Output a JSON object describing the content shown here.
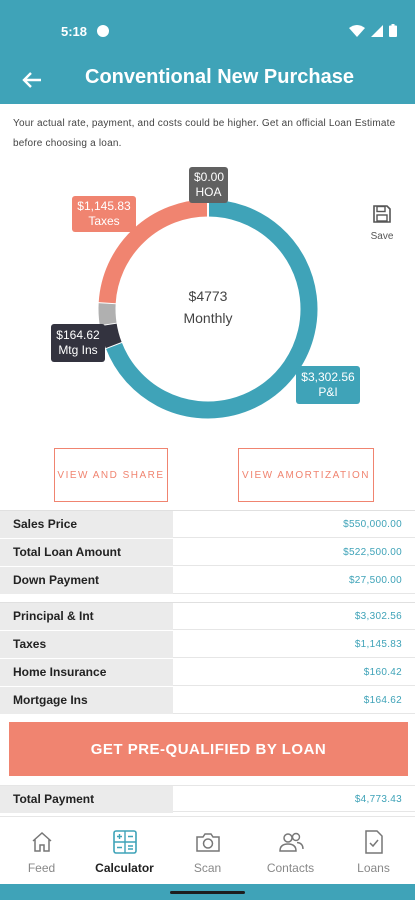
{
  "status_bar": {
    "time": "5:18"
  },
  "header": {
    "title": "Conventional New Purchase"
  },
  "disclaimer": "Your actual rate, payment, and costs could be higher. Get an official Loan Estimate before choosing a loan.",
  "chart_data": {
    "type": "pie",
    "variant": "donut",
    "center_amount": "$4773",
    "center_label": "Monthly",
    "slices": [
      {
        "name": "P&I",
        "value": 3302.56,
        "label": "$3,302.56",
        "color": "#3fa3b8"
      },
      {
        "name": "Mtg Ins",
        "value": 164.62,
        "label": "$164.62",
        "color": "#33333f"
      },
      {
        "name": "Home Insurance",
        "value": 160.42,
        "color": "#b0b0b0"
      },
      {
        "name": "Taxes",
        "value": 1145.83,
        "label": "$1,145.83",
        "color": "#f08470"
      },
      {
        "name": "HOA",
        "value": 0.0,
        "label": "$0.00",
        "color": "#616161"
      }
    ]
  },
  "tags": {
    "hoa": {
      "amount": "$0.00",
      "name": "HOA"
    },
    "taxes": {
      "amount": "$1,145.83",
      "name": "Taxes"
    },
    "mtg": {
      "amount": "$164.62",
      "name": "Mtg Ins"
    },
    "pi": {
      "amount": "$3,302.56",
      "name": "P&I"
    }
  },
  "save": {
    "label": "Save"
  },
  "buttons": {
    "share": "VIEW AND SHARE",
    "amortization": "VIEW AMORTIZATION",
    "cta": "GET PRE-QUALIFIED BY LOAN"
  },
  "loan_rows": [
    {
      "label": "Sales Price",
      "value": "$550,000.00"
    },
    {
      "label": "Total Loan Amount",
      "value": "$522,500.00"
    },
    {
      "label": "Down Payment",
      "value": "$27,500.00"
    }
  ],
  "payment_rows": [
    {
      "label": "Principal & Int",
      "value": "$3,302.56"
    },
    {
      "label": "Taxes",
      "value": "$1,145.83"
    },
    {
      "label": "Home Insurance",
      "value": "$160.42"
    },
    {
      "label": "Mortgage Ins",
      "value": "$164.62"
    }
  ],
  "total_row": {
    "label": "Total Payment",
    "value": "$4,773.43"
  },
  "nav": {
    "items": [
      {
        "label": "Feed",
        "icon": "home-icon"
      },
      {
        "label": "Calculator",
        "icon": "calculator-icon",
        "active": true
      },
      {
        "label": "Scan",
        "icon": "camera-icon"
      },
      {
        "label": "Contacts",
        "icon": "contacts-icon"
      },
      {
        "label": "Loans",
        "icon": "document-check-icon"
      }
    ]
  },
  "colors": {
    "primary": "#3fa3b8",
    "accent": "#f08470",
    "dark": "#33333f"
  }
}
